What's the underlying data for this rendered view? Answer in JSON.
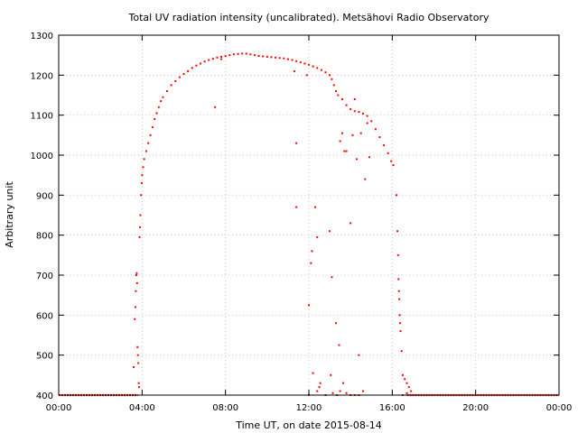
{
  "chart_data": {
    "type": "scatter",
    "title": "Total UV radiation intensity (uncalibrated). Metsähovi Radio Observatory",
    "xlabel": "Time UT, on date 2015-08-14",
    "ylabel": "Arbitrary unit",
    "x_unit": "hours UT",
    "xlim": [
      0,
      24
    ],
    "ylim": [
      400,
      1300
    ],
    "grid": true,
    "x_ticks": [
      {
        "value": 0,
        "label": "00:00"
      },
      {
        "value": 4,
        "label": "04:00"
      },
      {
        "value": 8,
        "label": "08:00"
      },
      {
        "value": 12,
        "label": "12:00"
      },
      {
        "value": 16,
        "label": "16:00"
      },
      {
        "value": 20,
        "label": "20:00"
      },
      {
        "value": 24,
        "label": "00:00"
      }
    ],
    "y_ticks": [
      400,
      500,
      600,
      700,
      800,
      900,
      1000,
      1100,
      1200,
      1300
    ],
    "series": [
      {
        "color": "#ff0000",
        "marker": "dot",
        "baseline": {
          "y": 400,
          "x_ranges": [
            [
              0,
              3.8
            ],
            [
              16.7,
              24
            ]
          ]
        },
        "points": [
          [
            3.6,
            470
          ],
          [
            3.65,
            590
          ],
          [
            3.68,
            620
          ],
          [
            3.7,
            660
          ],
          [
            3.72,
            700
          ],
          [
            3.74,
            705
          ],
          [
            3.76,
            680
          ],
          [
            3.78,
            520
          ],
          [
            3.8,
            500
          ],
          [
            3.82,
            480
          ],
          [
            3.84,
            430
          ],
          [
            3.86,
            420
          ],
          [
            3.88,
            795
          ],
          [
            3.9,
            820
          ],
          [
            3.92,
            850
          ],
          [
            3.95,
            900
          ],
          [
            3.98,
            930
          ],
          [
            4.0,
            950
          ],
          [
            4.05,
            970
          ],
          [
            4.1,
            990
          ],
          [
            4.2,
            1010
          ],
          [
            4.3,
            1030
          ],
          [
            4.4,
            1050
          ],
          [
            4.5,
            1070
          ],
          [
            4.6,
            1090
          ],
          [
            4.7,
            1105
          ],
          [
            4.8,
            1120
          ],
          [
            4.9,
            1135
          ],
          [
            5.0,
            1145
          ],
          [
            5.2,
            1160
          ],
          [
            5.4,
            1175
          ],
          [
            5.6,
            1185
          ],
          [
            5.8,
            1195
          ],
          [
            6.0,
            1203
          ],
          [
            6.2,
            1210
          ],
          [
            6.4,
            1218
          ],
          [
            6.6,
            1224
          ],
          [
            6.8,
            1229
          ],
          [
            7.0,
            1234
          ],
          [
            7.2,
            1238
          ],
          [
            7.4,
            1241
          ],
          [
            7.6,
            1244
          ],
          [
            7.8,
            1246
          ],
          [
            8.0,
            1248
          ],
          [
            8.2,
            1250
          ],
          [
            8.4,
            1252
          ],
          [
            8.6,
            1253
          ],
          [
            8.8,
            1254
          ],
          [
            9.0,
            1254
          ],
          [
            9.2,
            1252
          ],
          [
            9.4,
            1250
          ],
          [
            9.6,
            1248
          ],
          [
            9.8,
            1247
          ],
          [
            10.0,
            1246
          ],
          [
            10.2,
            1245
          ],
          [
            10.4,
            1244
          ],
          [
            10.6,
            1243
          ],
          [
            10.8,
            1242
          ],
          [
            11.0,
            1240
          ],
          [
            11.2,
            1238
          ],
          [
            11.4,
            1235
          ],
          [
            11.6,
            1232
          ],
          [
            11.8,
            1229
          ],
          [
            12.0,
            1226
          ],
          [
            12.2,
            1222
          ],
          [
            12.4,
            1218
          ],
          [
            12.6,
            1213
          ],
          [
            12.8,
            1207
          ],
          [
            13.0,
            1200
          ],
          [
            13.1,
            1190
          ],
          [
            13.2,
            1175
          ],
          [
            13.3,
            1160
          ],
          [
            13.4,
            1150
          ],
          [
            13.6,
            1140
          ],
          [
            13.8,
            1125
          ],
          [
            14.0,
            1115
          ],
          [
            14.2,
            1110
          ],
          [
            14.4,
            1108
          ],
          [
            14.6,
            1104
          ],
          [
            14.8,
            1098
          ],
          [
            15.0,
            1085
          ],
          [
            15.2,
            1065
          ],
          [
            15.4,
            1045
          ],
          [
            15.6,
            1025
          ],
          [
            15.8,
            1005
          ],
          [
            15.95,
            985
          ],
          [
            16.05,
            975
          ],
          [
            7.5,
            1120
          ],
          [
            7.8,
            1240
          ],
          [
            11.3,
            1210
          ],
          [
            11.4,
            1030
          ],
          [
            11.4,
            870
          ],
          [
            11.9,
            1200
          ],
          [
            12.0,
            625
          ],
          [
            12.1,
            730
          ],
          [
            12.15,
            760
          ],
          [
            12.3,
            870
          ],
          [
            12.4,
            795
          ],
          [
            12.5,
            420
          ],
          [
            12.55,
            430
          ],
          [
            13.0,
            810
          ],
          [
            13.1,
            695
          ],
          [
            13.3,
            580
          ],
          [
            13.45,
            525
          ],
          [
            13.6,
            1055
          ],
          [
            13.5,
            1035
          ],
          [
            13.7,
            1010
          ],
          [
            13.8,
            1010
          ],
          [
            14.0,
            830
          ],
          [
            14.1,
            1050
          ],
          [
            14.3,
            990
          ],
          [
            14.4,
            500
          ],
          [
            14.7,
            940
          ],
          [
            14.8,
            1080
          ],
          [
            14.9,
            995
          ],
          [
            14.2,
            1140
          ],
          [
            14.5,
            1055
          ],
          [
            12.2,
            455
          ],
          [
            12.4,
            410
          ],
          [
            13.05,
            450
          ],
          [
            13.15,
            405
          ],
          [
            13.35,
            400
          ],
          [
            13.5,
            410
          ],
          [
            13.65,
            430
          ],
          [
            13.8,
            405
          ],
          [
            14.0,
            400
          ],
          [
            14.2,
            400
          ],
          [
            14.4,
            400
          ],
          [
            14.6,
            410
          ],
          [
            12.8,
            400
          ],
          [
            12.0,
            400
          ],
          [
            16.2,
            900
          ],
          [
            16.25,
            810
          ],
          [
            16.28,
            750
          ],
          [
            16.3,
            690
          ],
          [
            16.32,
            660
          ],
          [
            16.34,
            640
          ],
          [
            16.36,
            600
          ],
          [
            16.38,
            580
          ],
          [
            16.4,
            560
          ],
          [
            16.45,
            510
          ],
          [
            16.5,
            450
          ],
          [
            16.6,
            440
          ],
          [
            16.7,
            430
          ],
          [
            16.8,
            420
          ],
          [
            16.9,
            410
          ],
          [
            16.5,
            400
          ],
          [
            16.7,
            405
          ],
          [
            17.0,
            400
          ]
        ]
      }
    ]
  }
}
